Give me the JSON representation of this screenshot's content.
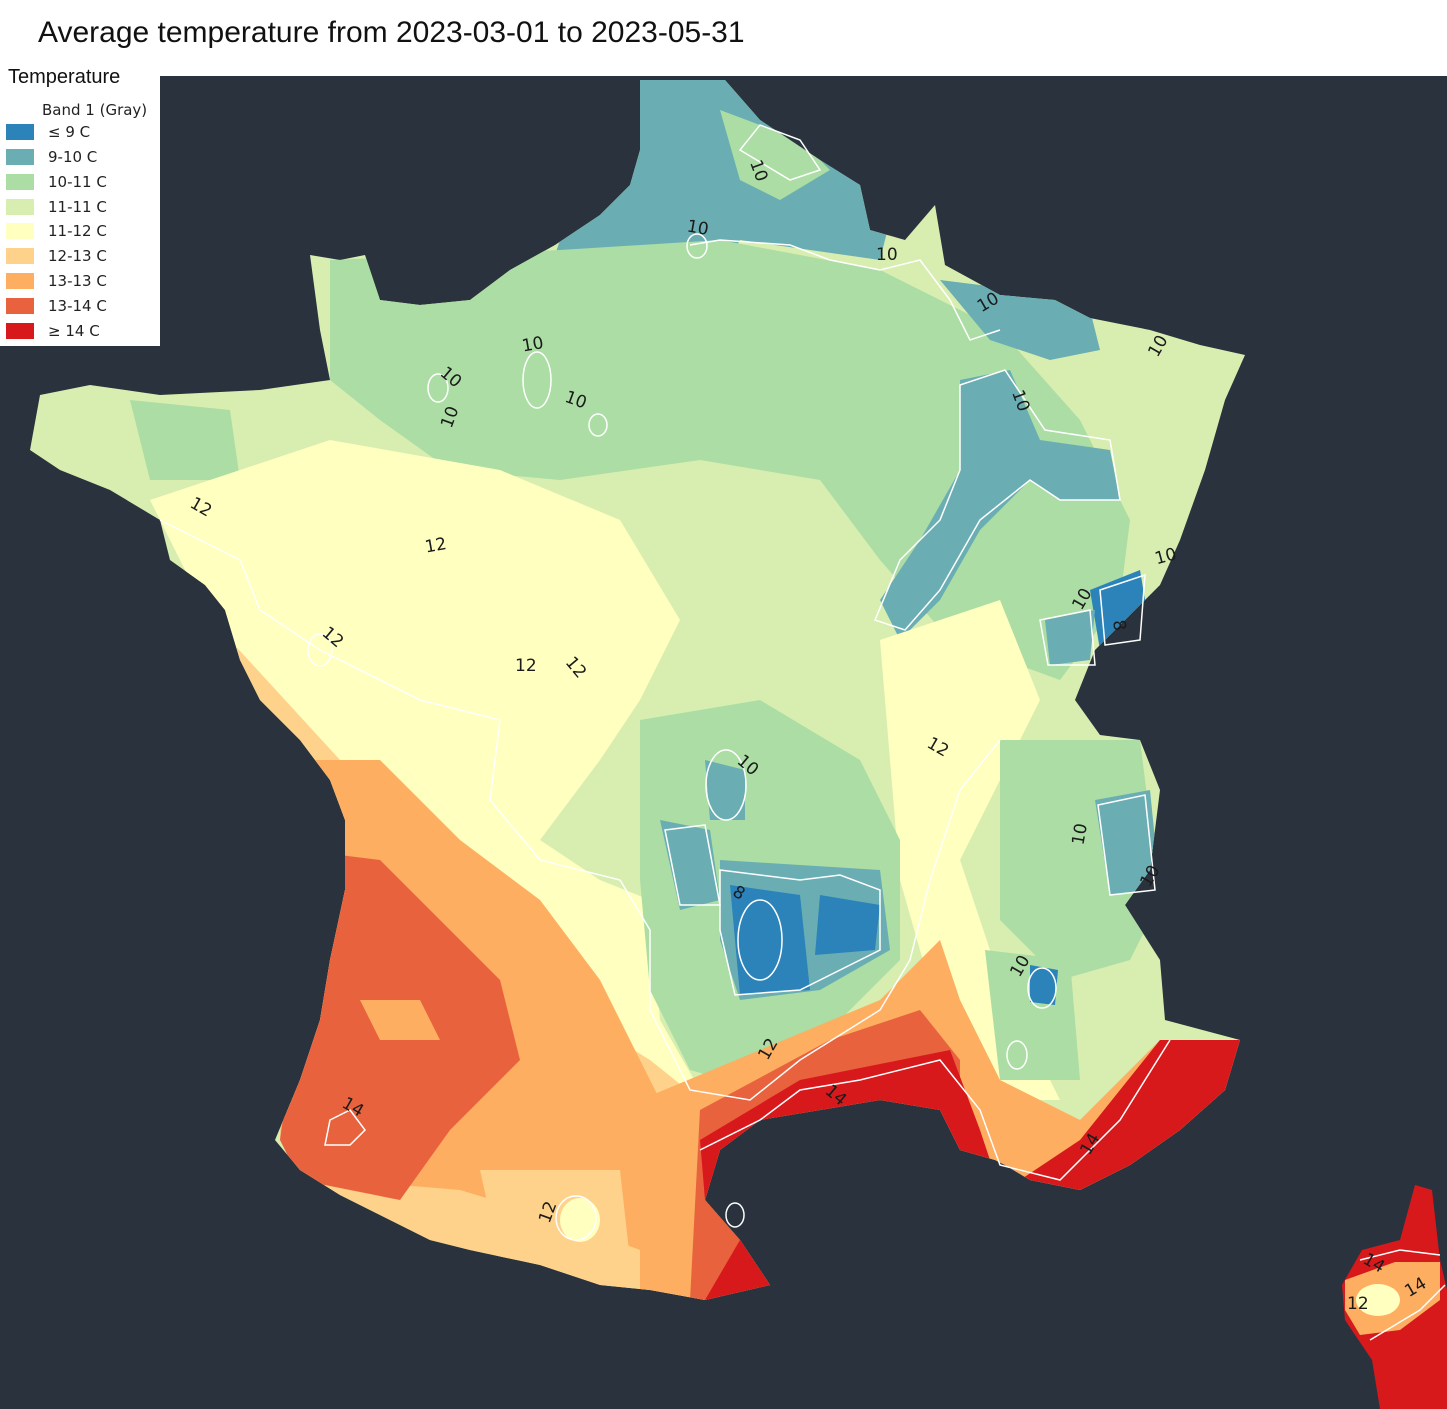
{
  "title": "Average temperature from 2023-03-01 to 2023-05-31",
  "legend": {
    "title": "Temperature",
    "subtitle": "Band 1 (Gray)",
    "items": [
      {
        "label": "≤ 9 C",
        "color": "#2b83ba"
      },
      {
        "label": "9-10 C",
        "color": "#6aaeb3"
      },
      {
        "label": "10-11 C",
        "color": "#abdda4"
      },
      {
        "label": "11-11 C",
        "color": "#d8eeb0"
      },
      {
        "label": "11-12 C",
        "color": "#ffffbf"
      },
      {
        "label": "12-13 C",
        "color": "#fed28b"
      },
      {
        "label": "13-13 C",
        "color": "#fdae61"
      },
      {
        "label": "13-14 C",
        "color": "#e9623e"
      },
      {
        "label": "≥ 14 C",
        "color": "#d7191c"
      }
    ]
  },
  "colors": {
    "background": "#2a323d",
    "contour_line": "#ffffff"
  },
  "contour_labels": [
    "10",
    "10",
    "10",
    "10",
    "10",
    "10",
    "10",
    "10",
    "10",
    "10",
    "10",
    "10",
    "10",
    "10",
    "10",
    "10",
    "8",
    "8",
    "12",
    "12",
    "12",
    "12",
    "12",
    "12",
    "12",
    "12",
    "12",
    "14",
    "14",
    "14",
    "14",
    "14"
  ]
}
